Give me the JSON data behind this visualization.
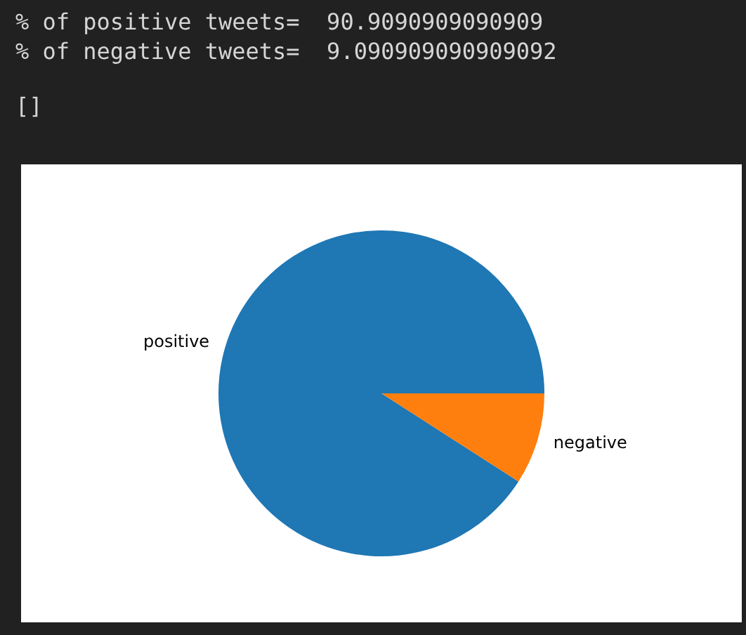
{
  "chart_data": {
    "type": "pie",
    "categories": [
      "positive",
      "negative"
    ],
    "values": [
      90.9090909090909,
      9.090909090909092
    ],
    "colors": [
      "#1f77b4",
      "#ff7f0e"
    ],
    "annotations": [
      "% of positive tweets=  90.9090909090909",
      "% of negative tweets=  9.090909090909092",
      "[]"
    ],
    "legend": false
  }
}
